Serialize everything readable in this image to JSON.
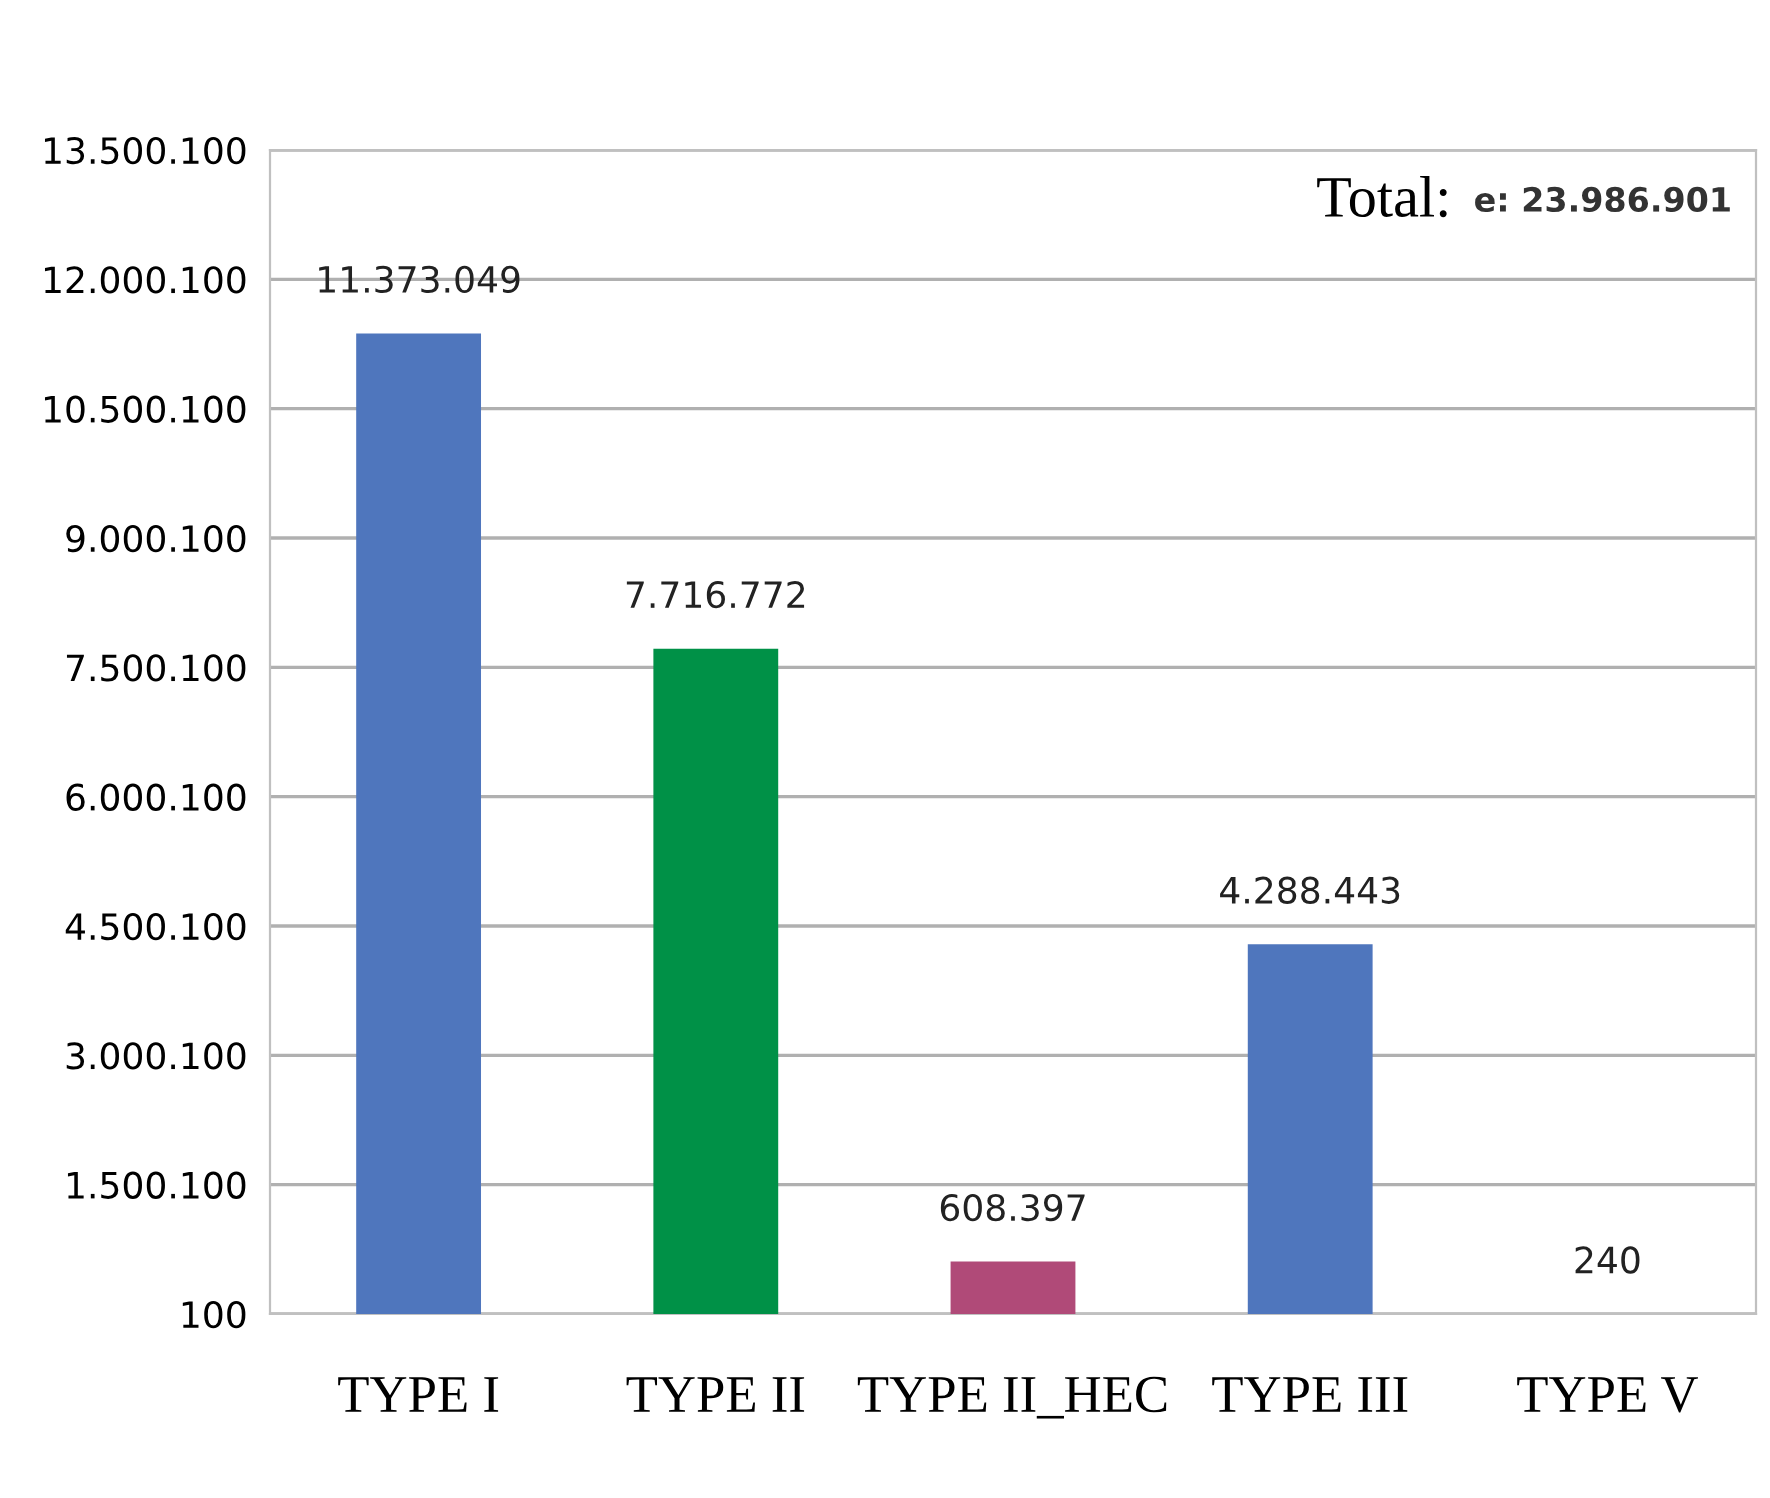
{
  "chart_data": {
    "type": "bar",
    "categories": [
      "TYPE I",
      "TYPE II",
      "TYPE II_HEC",
      "TYPE III",
      "TYPE V"
    ],
    "values": [
      11373049,
      7716772,
      608397,
      4288443,
      240
    ],
    "colors": [
      "#4f76bd",
      "#009147",
      "#b04a78",
      "#4f76bd",
      "#4f76bd"
    ],
    "value_labels": [
      "11.373.049",
      "7.716.772",
      "608.397",
      "4.288.443",
      "240"
    ],
    "ylim": [
      100,
      13500100
    ],
    "yticks": [
      {
        "value": 100,
        "label": "100"
      },
      {
        "value": 1500100,
        "label": "1.500.100"
      },
      {
        "value": 3000100,
        "label": "3.000.100"
      },
      {
        "value": 4500100,
        "label": "4.500.100"
      },
      {
        "value": 6000100,
        "label": "6.000.100"
      },
      {
        "value": 7500100,
        "label": "7.500.100"
      },
      {
        "value": 9000100,
        "label": "9.000.100"
      },
      {
        "value": 10500100,
        "label": "10.500.100"
      },
      {
        "value": 12000100,
        "label": "12.000.100"
      },
      {
        "value": 13500100,
        "label": "13.500.100"
      }
    ],
    "grid": "y",
    "annotations": [
      "Total:",
      "e: 23.986.901"
    ]
  }
}
